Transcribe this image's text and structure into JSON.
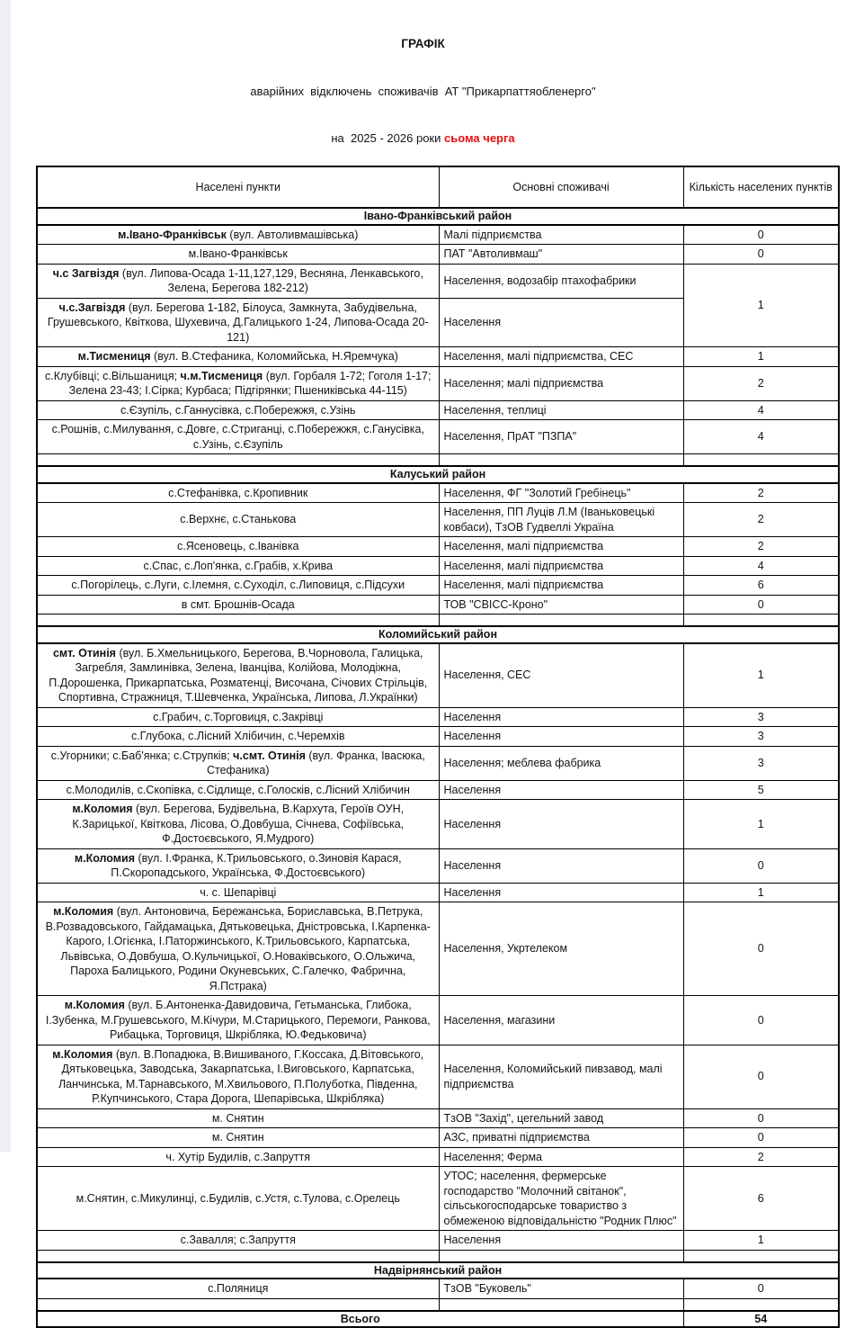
{
  "colors": {
    "highlight_red": "#e80d0d",
    "border_black": "#000000",
    "scan_edge_gray": "#edeff3"
  },
  "title": {
    "line1": "ГРАФІК",
    "line2": "аварійних  відключень  споживачів  АТ \"Прикарпаттяобленерго\"",
    "line3_prefix": "на  2025 - 2026 роки ",
    "line3_highlight": "сьома черга"
  },
  "table": {
    "headers": [
      "Населені пункти",
      "Основні споживачі",
      "Кількість населених пунктів"
    ],
    "rows": [
      {
        "type": "section",
        "label": "Івано-Франківський район"
      },
      {
        "type": "data",
        "locality": [
          {
            "t": "м.Івано-Франківськ",
            "b": true
          },
          {
            "t": " (вул. Автоливмашівська)",
            "b": false
          }
        ],
        "consumers": "Малі підприємства",
        "count": "0"
      },
      {
        "type": "data",
        "locality": [
          {
            "t": "м.Івано-Франківськ",
            "b": false
          }
        ],
        "consumers": "ПАТ \"Автоливмаш\"",
        "count": "0"
      },
      {
        "type": "data",
        "locality": [
          {
            "t": "ч.с Загвіздя",
            "b": true
          },
          {
            "t": " (вул. Липова-Осада 1-11,127,129,  Весняна, Ленкавського, Зелена, Берегова 182-212)",
            "b": false
          }
        ],
        "consumers": "Населення, водозабір птахофабрики",
        "count": "1",
        "count_rowspan": 2
      },
      {
        "type": "data",
        "locality": [
          {
            "t": "ч.с.Загвіздя",
            "b": true
          },
          {
            "t": " (вул. Берегова 1-182, Білоуса, Замкнута, Забудівельна, Грушевського, Квіткова, Шухевича, Д.Галицького 1-24, Липова-Осада 20-121)",
            "b": false
          }
        ],
        "consumers": "Населення",
        "count": null
      },
      {
        "type": "data",
        "locality": [
          {
            "t": "м.Тисмениця",
            "b": true
          },
          {
            "t": " (вул. В.Стефаника, Коломийська, Н.Яремчука)",
            "b": false
          }
        ],
        "consumers": "Населення, малі підприємства, СЕС",
        "count": "1"
      },
      {
        "type": "data",
        "locality": [
          {
            "t": "с.Клубівці; с.Вільшаниця;  ",
            "b": false
          },
          {
            "t": "ч.м.Тисмениця",
            "b": true
          },
          {
            "t": " (вул. Горбаля 1-72; Гоголя 1-17; Зелена 23-43; І.Сірка; Курбаса; Підгірянки; Пшениківська 44-115)",
            "b": false
          }
        ],
        "consumers": "Населення; малі підприємства",
        "count": "2"
      },
      {
        "type": "data",
        "locality": [
          {
            "t": "с.Єзупіль, с.Ганнусівка, с.Побережжя, с.Узінь",
            "b": false
          }
        ],
        "consumers": "Населення, теплиці",
        "count": "4"
      },
      {
        "type": "data",
        "locality": [
          {
            "t": "с.Рошнів, с.Милування, с.Довге, с.Стриганці, с.Побережжя, с.Ганусівка, с.Узінь, с.Єзупіль",
            "b": false
          }
        ],
        "consumers": "Населення, ПрАТ \"ПЗПА\"",
        "count": "4"
      },
      {
        "type": "empty"
      },
      {
        "type": "section",
        "label": "Калуський район"
      },
      {
        "type": "data",
        "locality": [
          {
            "t": "с.Стефанівка, с.Кропивник",
            "b": false
          }
        ],
        "consumers": "Населення, ФГ \"Золотий Гребінець\"",
        "count": "2"
      },
      {
        "type": "data",
        "locality": [
          {
            "t": "с.Верхнє, с.Станькова",
            "b": false
          }
        ],
        "consumers": "Населення, ПП Луців Л.М (Іваньковецькі ковбаси), ТзОВ Гудвеллі Україна",
        "count": "2"
      },
      {
        "type": "data",
        "locality": [
          {
            "t": "с.Ясеновець, с.Іванівка",
            "b": false
          }
        ],
        "consumers": "Населення, малі підприємства",
        "count": "2"
      },
      {
        "type": "data",
        "locality": [
          {
            "t": "с.Спас, с.Лоп'янка, с.Грабів, х.Крива",
            "b": false
          }
        ],
        "consumers": "Населення, малі підприємства",
        "count": "4"
      },
      {
        "type": "data",
        "locality": [
          {
            "t": "с.Погорілець, с.Луги, с.Ілемня, с.Суходіл, с.Липовиця, с.Підсухи",
            "b": false
          }
        ],
        "consumers": "Населення, малі підприємства",
        "count": "6"
      },
      {
        "type": "data",
        "locality": [
          {
            "t": "в смт. Брошнів-Осада",
            "b": false
          }
        ],
        "consumers": "ТОВ \"СВІСС-Кроно\"",
        "count": "0"
      },
      {
        "type": "empty"
      },
      {
        "type": "section",
        "label": "Коломийський район"
      },
      {
        "type": "data",
        "locality": [
          {
            "t": "смт. Отинія",
            "b": true
          },
          {
            "t": " (вул. Б.Хмельницького, Берегова, В.Чорновола, Галицька, Загребля, Замлинівка, Зелена, Іванціва, Колійова, Молодіжна, П.Дорошенка, Прикарпатська, Розматенці, Височана, Січових Стрільців, Спортивна, Стражниця, Т.Шевченка, Українська, Липова, Л.Українки)",
            "b": false
          }
        ],
        "consumers": "Населення, СЕС",
        "count": "1"
      },
      {
        "type": "data",
        "locality": [
          {
            "t": "с.Грабич, с.Торговиця, с.Закрівці",
            "b": false
          }
        ],
        "consumers": "Населення",
        "count": "3"
      },
      {
        "type": "data",
        "locality": [
          {
            "t": "с.Глубока, с.Лісний Хлібичин, с.Черемхів",
            "b": false
          }
        ],
        "consumers": "Населення",
        "count": "3"
      },
      {
        "type": "data",
        "locality": [
          {
            "t": "с.Угорники; с.Баб'янка; с.Струпків; ",
            "b": false
          },
          {
            "t": "ч.смт. Отинія",
            "b": true
          },
          {
            "t": " (вул. Франка, Івасюка, Стефаника)",
            "b": false
          }
        ],
        "consumers": "Населення; меблева фабрика",
        "count": "3"
      },
      {
        "type": "data",
        "locality": [
          {
            "t": "с.Молодилів, с.Скопівка, с.Сідлище, с.Голосків, с.Лісний Хлібичин",
            "b": false
          }
        ],
        "consumers": "Населення",
        "count": "5"
      },
      {
        "type": "data",
        "locality": [
          {
            "t": "м.Коломия",
            "b": true
          },
          {
            "t": " (вул. Берегова, Будівельна, В.Кархута, Героїв ОУН, К.Зарицької, Квіткова, Лісова, О.Довбуша, Січнева, Софіївська, Ф.Достоєвського, Я.Мудрого)",
            "b": false
          }
        ],
        "consumers": "Населення",
        "count": "1"
      },
      {
        "type": "data",
        "locality": [
          {
            "t": "м.Коломия",
            "b": true
          },
          {
            "t": " (вул. І.Франка, К.Трильовського, о.Зиновія Карася, П.Скоропадського, Українська, Ф.Достоєвського)",
            "b": false
          }
        ],
        "consumers": "Населення",
        "count": "0"
      },
      {
        "type": "data",
        "locality": [
          {
            "t": "ч. с. Шепарівці",
            "b": false
          }
        ],
        "consumers": "Населення",
        "count": "1"
      },
      {
        "type": "data",
        "locality": [
          {
            "t": "м.Коломия",
            "b": true
          },
          {
            "t": " (вул. Антоновича, Бережанська, Бориславська, В.Петрука, В.Розвадовського, Гайдамацька, Дятьковецька, Дністровська, І.Карпенка-Карого, І.Огієнка, І.Паторжинського, К.Трильовського, Карпатська, Львівська, О.Довбуша, О.Кульчицької, О.Новаківського, О.Ольжича, Пароха Балицького, Родини Окуневських, С.Галечко, Фабрична, Я.Пстрака)",
            "b": false
          }
        ],
        "consumers": "Населення, Укртелеком",
        "count": "0"
      },
      {
        "type": "data",
        "locality": [
          {
            "t": "м.Коломия",
            "b": true
          },
          {
            "t": " (вул. Б.Антоненка-Давидовича, Гетьманська, Глибока, І.Зубенка, М.Грушевського, М.Кічури, М.Старицького, Перемоги, Ранкова, Рибацька, Торговиця, Шкрібляка, Ю.Федьковича)",
            "b": false
          }
        ],
        "consumers": "Населення, магазини",
        "count": "0"
      },
      {
        "type": "data",
        "locality": [
          {
            "t": "м.Коломия",
            "b": true
          },
          {
            "t": " (вул. В.Попадюка, В.Вишиваного, Г.Коссака, Д.Вітовського, Дятьковецька, Заводська, Закарпатська, І.Виговського, Карпатська, Ланчинська, М.Тарнавського, М.Хвильового,  П.Полуботка, Південна, Р.Купчинського, Стара Дорога, Шепарівська, Шкрібляка)",
            "b": false
          }
        ],
        "consumers": "Населення, Коломийський пивзавод, малі підприємства",
        "count": "0"
      },
      {
        "type": "data",
        "locality": [
          {
            "t": "м. Снятин",
            "b": false
          }
        ],
        "consumers": "ТзОВ \"Захід\", цегельний завод",
        "count": "0"
      },
      {
        "type": "data",
        "locality": [
          {
            "t": "м. Снятин",
            "b": false
          }
        ],
        "consumers": "АЗС, приватні підприємства",
        "count": "0"
      },
      {
        "type": "data",
        "locality": [
          {
            "t": "ч. Хутір Будилів, с.Запруття",
            "b": false
          }
        ],
        "consumers": "Населення; Ферма",
        "count": "2"
      },
      {
        "type": "data",
        "locality": [
          {
            "t": "м.Снятин, с.Микулинці, с.Будилів, с.Устя, с.Тулова, с.Орелець",
            "b": false
          }
        ],
        "consumers": "УТОС; населення, фермерське господарство \"Молочний світанок\", сільськогосподарське товариство з обмеженою відповідальністю \"Родник Плюс\"",
        "count": "6"
      },
      {
        "type": "data",
        "locality": [
          {
            "t": "с.Завалля; с.Запруття",
            "b": false
          }
        ],
        "consumers": "Населення",
        "count": "1"
      },
      {
        "type": "empty"
      },
      {
        "type": "section",
        "label": "Надвірнянський район"
      },
      {
        "type": "data",
        "locality": [
          {
            "t": "с.Поляниця",
            "b": false
          }
        ],
        "consumers": "ТзОВ \"Буковель\"",
        "count": "0"
      },
      {
        "type": "empty"
      },
      {
        "type": "total",
        "label": "Всього",
        "value": "54"
      }
    ]
  }
}
